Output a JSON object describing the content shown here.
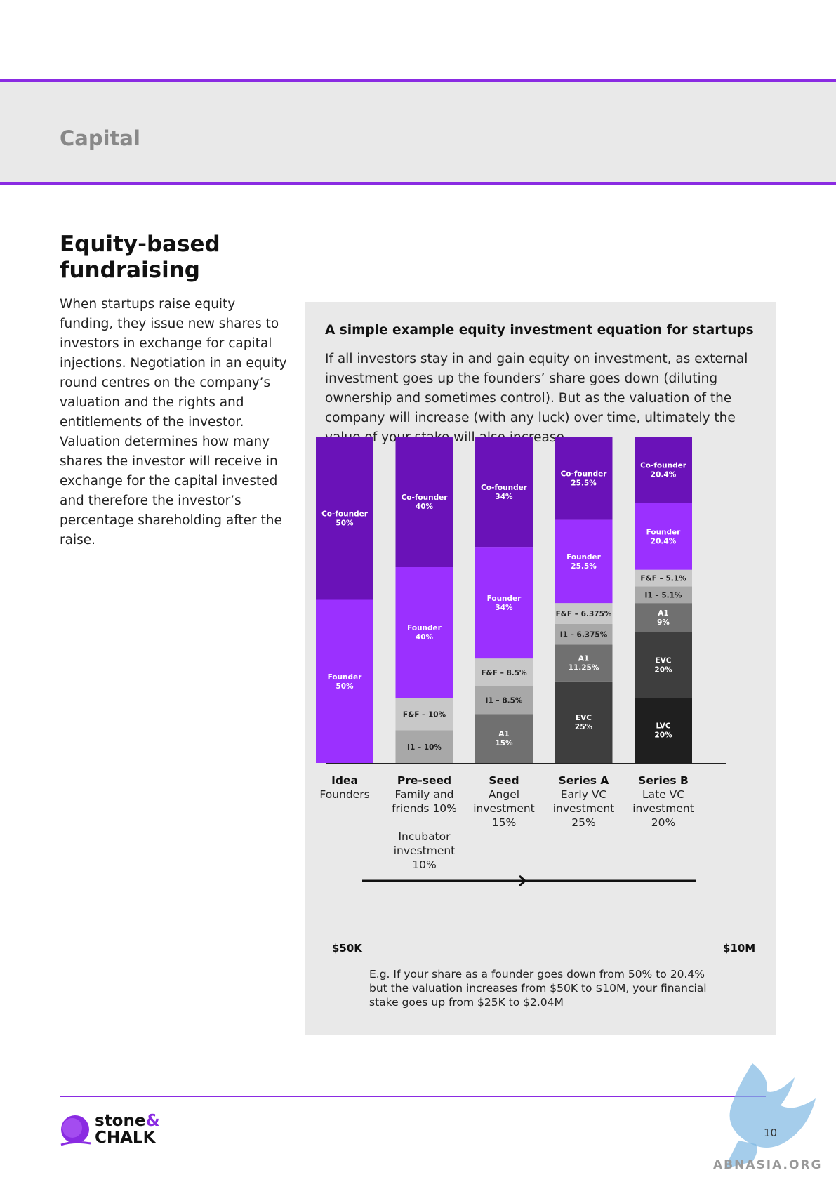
{
  "header": {
    "section_title": "Capital"
  },
  "heading": "Equity-based fundraising",
  "intro": "When startups raise equity funding, they issue new shares to investors in exchange for capital injections. Negotiation in an equity round centres on the company’s valuation and the rights and entitlements of the investor. Valuation determines how many shares the investor will receive in exchange for the capital invested and therefore the investor’s percentage shareholding after the raise.",
  "panel": {
    "title": "A simple example equity investment equation for startups",
    "description": "If all investors stay in and gain equity on investment, as external investment goes up the founders’ share goes down (diluting ownership and sometimes control). But as the valuation of the company will increase (with any luck) over time, ultimately the value of your stake will also increase.",
    "scale_start": "$50K",
    "scale_end": "$10M",
    "example": "E.g. If your share as a founder goes down from 50% to 20.4% but the valuation increases from $50K to $10M, your financial stake goes up from $25K to $2.04M"
  },
  "chart_data": {
    "type": "bar",
    "stacked": true,
    "categories": [
      "Idea",
      "Pre-seed",
      "Seed",
      "Series A",
      "Series B"
    ],
    "category_captions": [
      {
        "title": "Idea",
        "lines": [
          "Founders"
        ]
      },
      {
        "title": "Pre-seed",
        "lines": [
          "Family and",
          "friends 10%",
          "",
          "Incubator",
          "investment",
          "10%"
        ]
      },
      {
        "title": "Seed",
        "lines": [
          "Angel",
          "investment",
          "15%"
        ]
      },
      {
        "title": "Series A",
        "lines": [
          "Early VC",
          "investment",
          "25%"
        ]
      },
      {
        "title": "Series B",
        "lines": [
          "Late VC",
          "investment",
          "20%"
        ]
      }
    ],
    "stacks": [
      [
        {
          "label": "Founder",
          "value_label": "50%",
          "value": 50,
          "color": "#9b30ff",
          "text": "#ffffff"
        },
        {
          "label": "Co-founder",
          "value_label": "50%",
          "value": 50,
          "color": "#6a12b8",
          "text": "#ffffff"
        }
      ],
      [
        {
          "label": "I1 – 10%",
          "value_label": "",
          "value": 10,
          "color": "#a8a8a8",
          "text": "#222222"
        },
        {
          "label": "F&F – 10%",
          "value_label": "",
          "value": 10,
          "color": "#c8c8c8",
          "text": "#222222"
        },
        {
          "label": "Founder",
          "value_label": "40%",
          "value": 40,
          "color": "#9b30ff",
          "text": "#ffffff"
        },
        {
          "label": "Co-founder",
          "value_label": "40%",
          "value": 40,
          "color": "#6a12b8",
          "text": "#ffffff"
        }
      ],
      [
        {
          "label": "A1",
          "value_label": "15%",
          "value": 15,
          "color": "#707070",
          "text": "#ffffff"
        },
        {
          "label": "I1 – 8.5%",
          "value_label": "",
          "value": 8.5,
          "color": "#a8a8a8",
          "text": "#222222"
        },
        {
          "label": "F&F – 8.5%",
          "value_label": "",
          "value": 8.5,
          "color": "#c8c8c8",
          "text": "#222222"
        },
        {
          "label": "Founder",
          "value_label": "34%",
          "value": 34,
          "color": "#9b30ff",
          "text": "#ffffff"
        },
        {
          "label": "Co-founder",
          "value_label": "34%",
          "value": 34,
          "color": "#6a12b8",
          "text": "#ffffff"
        }
      ],
      [
        {
          "label": "EVC",
          "value_label": "25%",
          "value": 25,
          "color": "#3e3e3e",
          "text": "#ffffff"
        },
        {
          "label": "A1",
          "value_label": "11.25%",
          "value": 11.25,
          "color": "#707070",
          "text": "#ffffff"
        },
        {
          "label": "I1 – 6.375%",
          "value_label": "",
          "value": 6.375,
          "color": "#a8a8a8",
          "text": "#222222"
        },
        {
          "label": "F&F – 6.375%",
          "value_label": "",
          "value": 6.375,
          "color": "#c8c8c8",
          "text": "#222222"
        },
        {
          "label": "Founder",
          "value_label": "25.5%",
          "value": 25.5,
          "color": "#9b30ff",
          "text": "#ffffff"
        },
        {
          "label": "Co-founder",
          "value_label": "25.5%",
          "value": 25.5,
          "color": "#6a12b8",
          "text": "#ffffff"
        }
      ],
      [
        {
          "label": "LVC",
          "value_label": "20%",
          "value": 20,
          "color": "#1f1f1f",
          "text": "#ffffff"
        },
        {
          "label": "EVC",
          "value_label": "20%",
          "value": 20,
          "color": "#3e3e3e",
          "text": "#ffffff"
        },
        {
          "label": "A1",
          "value_label": "9%",
          "value": 9,
          "color": "#707070",
          "text": "#ffffff"
        },
        {
          "label": "I1 – 5.1%",
          "value_label": "",
          "value": 5.1,
          "color": "#a8a8a8",
          "text": "#222222"
        },
        {
          "label": "F&F – 5.1%",
          "value_label": "",
          "value": 5.1,
          "color": "#c8c8c8",
          "text": "#222222"
        },
        {
          "label": "Founder",
          "value_label": "20.4%",
          "value": 20.4,
          "color": "#9b30ff",
          "text": "#ffffff"
        },
        {
          "label": "Co-founder",
          "value_label": "20.4%",
          "value": 20.4,
          "color": "#6a12b8",
          "text": "#ffffff"
        }
      ]
    ],
    "ylim": [
      0,
      100
    ]
  },
  "footer": {
    "brand_line1": "stone",
    "brand_amp": "&",
    "brand_line2": "CHALK",
    "page_number": "10",
    "watermark_text": "ABNASIA.ORG"
  },
  "colors": {
    "accent": "#8a2be2",
    "panel_bg": "#e9e9e9"
  }
}
